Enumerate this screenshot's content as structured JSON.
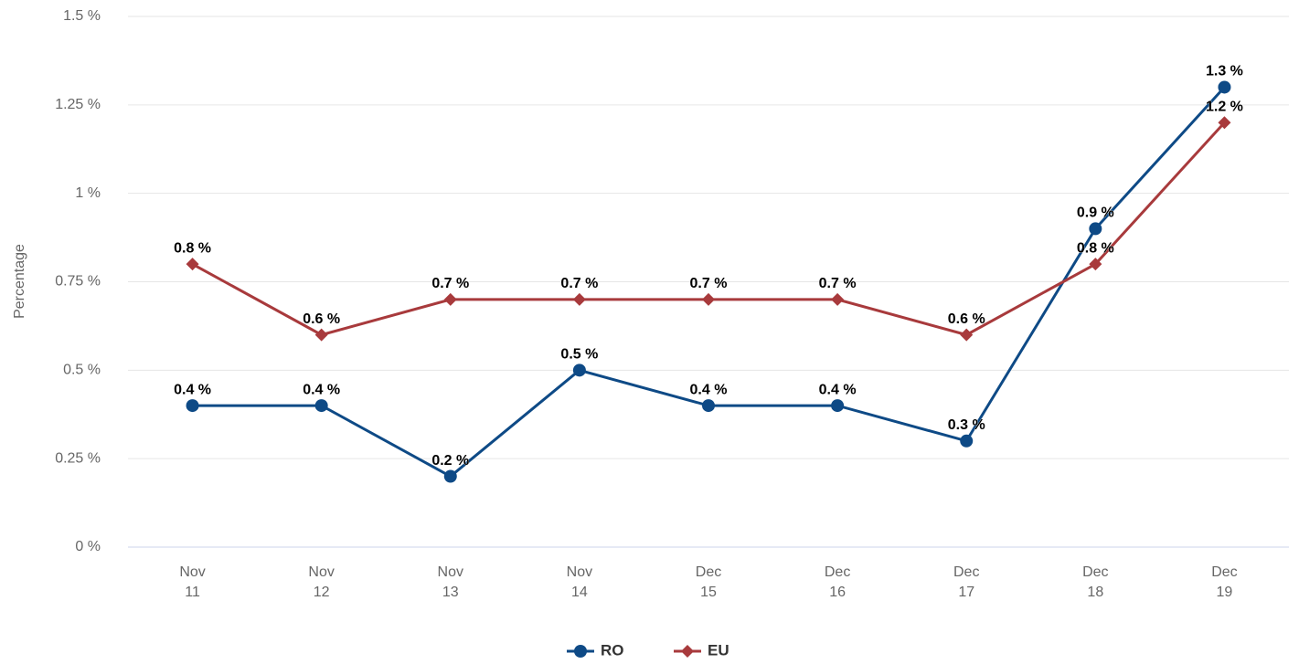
{
  "chart_data": {
    "type": "line",
    "y_label": "Percentage",
    "categories": [
      "Nov 11",
      "Nov 12",
      "Nov 13",
      "Nov 14",
      "Dec 15",
      "Dec 16",
      "Dec 17",
      "Dec 18",
      "Dec 19"
    ],
    "series": [
      {
        "name": "RO",
        "color": "#0e4a86",
        "marker": "circle",
        "values": [
          0.4,
          0.4,
          0.2,
          0.5,
          0.4,
          0.4,
          0.3,
          0.9,
          1.3
        ],
        "value_labels": [
          "0.4 %",
          "0.4 %",
          "0.2 %",
          "0.5 %",
          "0.4 %",
          "0.4 %",
          "0.3 %",
          "0.9 %",
          "1.3 %"
        ]
      },
      {
        "name": "EU",
        "color": "#a83a3c",
        "marker": "diamond",
        "values": [
          0.8,
          0.6,
          0.7,
          0.7,
          0.7,
          0.7,
          0.6,
          0.8,
          1.2
        ],
        "value_labels": [
          "0.8 %",
          "0.6 %",
          "0.7 %",
          "0.7 %",
          "0.7 %",
          "0.7 %",
          "0.6 %",
          "0.8 %",
          "1.2 %"
        ]
      }
    ],
    "ylim": [
      0,
      1.5
    ],
    "yticks": [
      {
        "value": 0,
        "label": "0 %"
      },
      {
        "value": 0.25,
        "label": "0.25 %"
      },
      {
        "value": 0.5,
        "label": "0.5 %"
      },
      {
        "value": 0.75,
        "label": "0.75 %"
      },
      {
        "value": 1,
        "label": "1 %"
      },
      {
        "value": 1.25,
        "label": "1.25 %"
      },
      {
        "value": 1.5,
        "label": "1.5 %"
      }
    ],
    "grid": true,
    "legend": "bottom"
  }
}
